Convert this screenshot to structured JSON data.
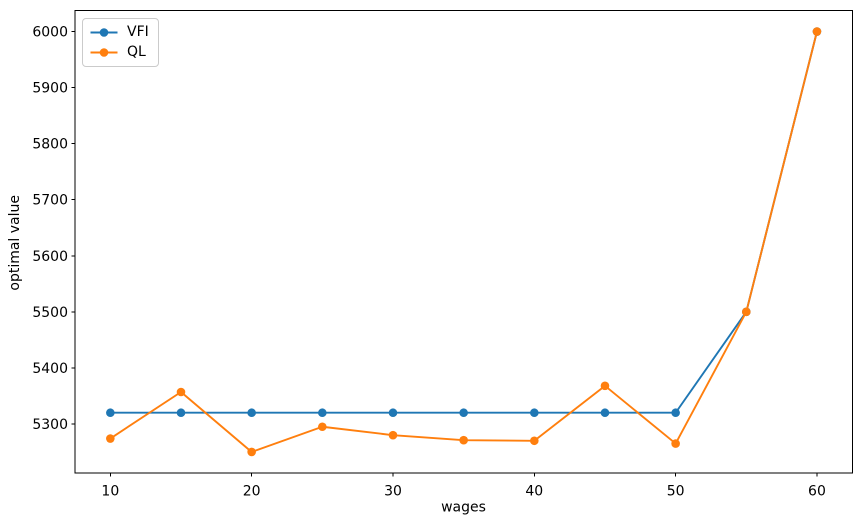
{
  "figure": {
    "background": "#ffffff",
    "axis_color": "#000000",
    "text_color": "#000000"
  },
  "chart_data": {
    "type": "line",
    "title": "",
    "xlabel": "wages",
    "ylabel": "optimal value",
    "x": [
      10,
      15,
      20,
      25,
      30,
      35,
      40,
      45,
      50,
      55,
      60
    ],
    "series": [
      {
        "name": "VFI",
        "color": "#1f77b4",
        "marker": "circle",
        "values": [
          5320,
          5320,
          5320,
          5320,
          5320,
          5320,
          5320,
          5320,
          5320,
          5500,
          6000
        ]
      },
      {
        "name": "QL",
        "color": "#ff7f0e",
        "marker": "circle",
        "values": [
          5274,
          5357,
          5250,
          5295,
          5280,
          5271,
          5270,
          5368,
          5265,
          5500,
          6000
        ]
      }
    ],
    "xlim": [
      7.5,
      62.5
    ],
    "ylim": [
      5212.5,
      6037.5
    ],
    "x_ticks": [
      10,
      20,
      30,
      40,
      50,
      60
    ],
    "y_ticks": [
      5300,
      5400,
      5500,
      5600,
      5700,
      5800,
      5900,
      6000
    ],
    "grid": false,
    "legend": {
      "position": "upper left",
      "entries": [
        "VFI",
        "QL"
      ]
    }
  }
}
